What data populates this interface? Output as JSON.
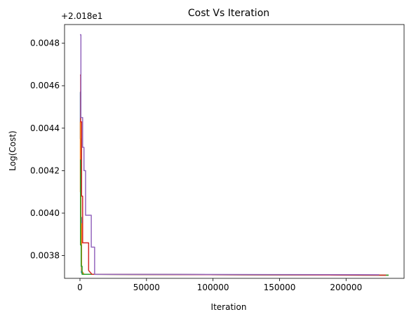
{
  "chart_data": {
    "type": "line",
    "title": "Cost Vs Iteration",
    "xlabel": "Iteration",
    "ylabel": "Log(Cost)",
    "y_offset_text": "+2.018e1",
    "xlim": [
      -11600,
      243600
    ],
    "ylim": [
      0.003693,
      0.004888
    ],
    "x_ticks": [
      0,
      50000,
      100000,
      150000,
      200000
    ],
    "x_tick_labels": [
      "0",
      "50000",
      "100000",
      "150000",
      "200000"
    ],
    "y_ticks": [
      0.0038,
      0.004,
      0.0042,
      0.0044,
      0.0046,
      0.0048
    ],
    "y_tick_labels": [
      "0.0038",
      "0.0040",
      "0.0042",
      "0.0044",
      "0.0046",
      "0.0048"
    ],
    "grid": false,
    "series": [
      {
        "color": "#1f77b4",
        "points": [
          [
            0,
            0.00457
          ],
          [
            300,
            0.00457
          ],
          [
            300,
            0.00435
          ],
          [
            700,
            0.00435
          ],
          [
            700,
            0.00398
          ],
          [
            1100,
            0.00398
          ],
          [
            1100,
            0.00372
          ],
          [
            2500,
            0.003712
          ],
          [
            232000,
            0.003708
          ]
        ]
      },
      {
        "color": "#ff7f0e",
        "points": [
          [
            0,
            0.00443
          ],
          [
            300,
            0.00443
          ],
          [
            300,
            0.0041
          ],
          [
            700,
            0.0041
          ],
          [
            700,
            0.00395
          ],
          [
            1200,
            0.00395
          ],
          [
            1200,
            0.00373
          ],
          [
            3000,
            0.003712
          ],
          [
            232000,
            0.003708
          ]
        ]
      },
      {
        "color": "#2ca02c",
        "points": [
          [
            0,
            0.00425
          ],
          [
            400,
            0.00425
          ],
          [
            400,
            0.00385
          ],
          [
            900,
            0.00385
          ],
          [
            900,
            0.00375
          ],
          [
            1600,
            0.00375
          ],
          [
            1600,
            0.003712
          ],
          [
            232000,
            0.003708
          ]
        ]
      },
      {
        "color": "#d62728",
        "points": [
          [
            0,
            0.00465
          ],
          [
            500,
            0.00465
          ],
          [
            500,
            0.00443
          ],
          [
            1200,
            0.00443
          ],
          [
            1200,
            0.00408
          ],
          [
            2000,
            0.00408
          ],
          [
            2000,
            0.00386
          ],
          [
            6500,
            0.00386
          ],
          [
            6500,
            0.00373
          ],
          [
            9000,
            0.003712
          ],
          [
            230000,
            0.003708
          ]
        ]
      },
      {
        "color": "#9467bd",
        "points": [
          [
            0,
            0.00484
          ],
          [
            700,
            0.00484
          ],
          [
            700,
            0.00445
          ],
          [
            2000,
            0.00445
          ],
          [
            2000,
            0.00431
          ],
          [
            3000,
            0.00431
          ],
          [
            3000,
            0.0042
          ],
          [
            4200,
            0.0042
          ],
          [
            4200,
            0.00399
          ],
          [
            8500,
            0.00399
          ],
          [
            8500,
            0.00384
          ],
          [
            11000,
            0.00384
          ],
          [
            11000,
            0.003712
          ],
          [
            225000,
            0.00371
          ]
        ]
      }
    ]
  }
}
